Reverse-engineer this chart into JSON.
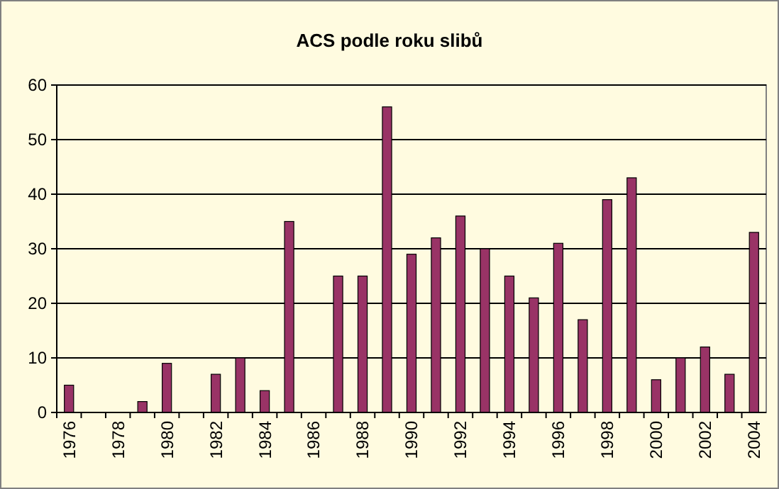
{
  "chart_data": {
    "type": "bar",
    "title": "ACS podle roku slibů",
    "categories": [
      "1976",
      null,
      "1978",
      null,
      "1980",
      null,
      "1982",
      null,
      "1984",
      null,
      "1986",
      null,
      "1988",
      null,
      "1990",
      null,
      "1992",
      null,
      "1994",
      null,
      "1996",
      null,
      "1998",
      null,
      "2000",
      null,
      "2002",
      null,
      "2004"
    ],
    "values": [
      5,
      0,
      0,
      2,
      9,
      0,
      7,
      10,
      4,
      35,
      0,
      25,
      25,
      56,
      29,
      32,
      36,
      30,
      25,
      21,
      31,
      17,
      39,
      43,
      6,
      10,
      12,
      7,
      33
    ],
    "color": "#993366",
    "ylim": [
      0,
      60
    ],
    "yticks": [
      0,
      10,
      20,
      30,
      40,
      50,
      60
    ],
    "grid": "y"
  }
}
